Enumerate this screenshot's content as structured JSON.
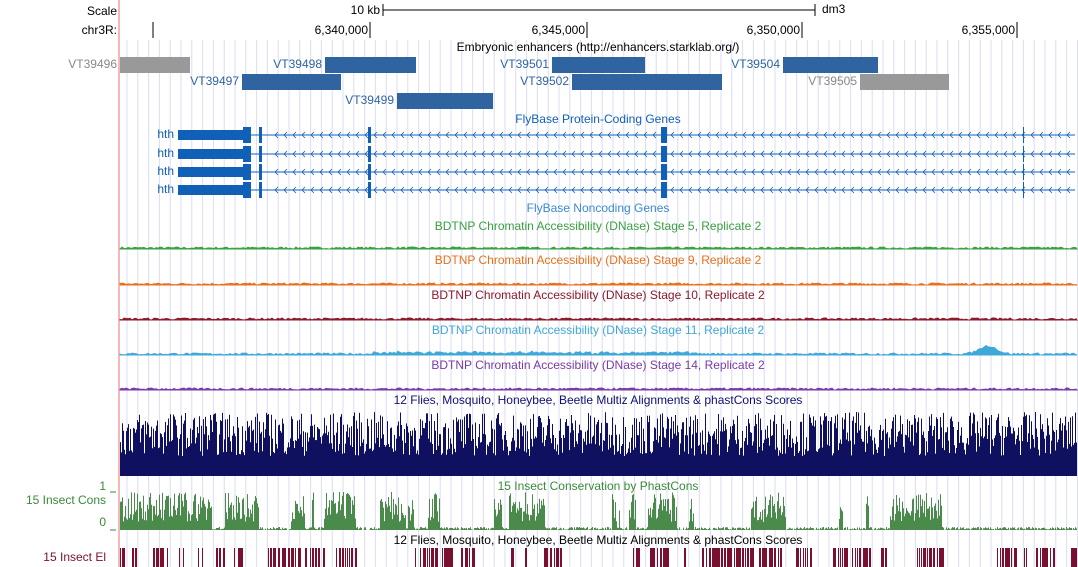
{
  "scale": {
    "label": "Scale",
    "size": "10 kb",
    "assembly": "dm3"
  },
  "ruler": {
    "chrom": "chr3R:",
    "ticks": [
      "6,340,000",
      "6,345,000",
      "6,350,000",
      "6,355,000"
    ]
  },
  "tracks": {
    "enhancers": {
      "title": "Embryonic enhancers (http://enhancers.starklab.org/)",
      "items": [
        "VT39496",
        "VT39498",
        "VT39501",
        "VT39504",
        "VT39497",
        "VT39502",
        "VT39505",
        "VT39499"
      ]
    },
    "genes": {
      "title": "FlyBase Protein-Coding Genes",
      "items": [
        "hth",
        "hth",
        "hth",
        "hth"
      ]
    },
    "noncoding": {
      "title": "FlyBase Noncoding Genes"
    },
    "dnase": [
      "BDTNP Chromatin Accessibility (DNase) Stage 5, Replicate 2",
      "BDTNP Chromatin Accessibility (DNase) Stage 9, Replicate 2",
      "BDTNP Chromatin Accessibility (DNase) Stage 10, Replicate 2",
      "BDTNP Chromatin Accessibility (DNase) Stage 11, Replicate 2",
      "BDTNP Chromatin Accessibility (DNase) Stage 14, Replicate 2"
    ],
    "multiz": {
      "title": "12 Flies, Mosquito, Honeybee, Beetle Multiz Alignments & phastCons Scores"
    },
    "cons": {
      "title": "15 Insect Conservation by PhastCons",
      "label": "15 Insect Cons",
      "max": "1",
      "min": "0"
    },
    "elements": {
      "title": "12 Flies, Mosquito, Honeybee, Beetle Multiz Alignments & phastCons Scores",
      "label": "15 Insect El"
    }
  }
}
